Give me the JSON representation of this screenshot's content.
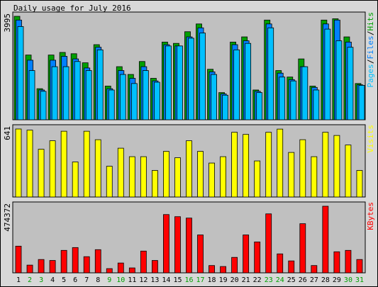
{
  "title": "Daily usage for July 2016",
  "colors": {
    "hits": "#00a000",
    "files": "#0080ff",
    "pages": "#00c0ff",
    "visits": "#ffff00",
    "kbytes": "#ff0000",
    "weekday_label": "#000000",
    "weekend_label": "#00a000"
  },
  "chart_data": [
    {
      "type": "bar",
      "title": "Daily usage for July 2016",
      "ylabel_max": "3995",
      "ylim": [
        0,
        3995
      ],
      "legend": [
        {
          "name": "Pages",
          "color": "#00c0ff"
        },
        {
          "name": "Files",
          "color": "#0080ff"
        },
        {
          "name": "Hits",
          "color": "#00a000"
        }
      ],
      "categories": [
        "1",
        "2",
        "3",
        "4",
        "5",
        "6",
        "7",
        "8",
        "9",
        "10",
        "11",
        "12",
        "13",
        "14",
        "15",
        "16",
        "17",
        "18",
        "19",
        "20",
        "21",
        "22",
        "23",
        "24",
        "25",
        "26",
        "27",
        "28",
        "29",
        "30",
        "31"
      ],
      "weekend_days": [
        "2",
        "3",
        "9",
        "10",
        "16",
        "17",
        "23",
        "24",
        "30",
        "31"
      ],
      "series": [
        {
          "name": "Hits",
          "values": [
            3995,
            2500,
            1200,
            2500,
            2600,
            2550,
            2200,
            2900,
            1300,
            2050,
            1750,
            2250,
            1600,
            3000,
            2950,
            3400,
            3700,
            1950,
            1050,
            3000,
            3200,
            1150,
            3850,
            1900,
            1650,
            2350,
            1300,
            3850,
            3900,
            3200,
            1400
          ]
        },
        {
          "name": "Files",
          "values": [
            3850,
            2300,
            1150,
            2300,
            2450,
            2350,
            2000,
            2800,
            1200,
            1900,
            1600,
            2050,
            1500,
            2900,
            2850,
            3200,
            3550,
            1850,
            1000,
            2900,
            3050,
            1100,
            3700,
            1800,
            1550,
            2050,
            1250,
            3700,
            3850,
            3000,
            1350
          ]
        },
        {
          "name": "Pages",
          "values": [
            3600,
            1900,
            1100,
            2050,
            2050,
            2250,
            1900,
            2700,
            1150,
            1750,
            1400,
            1900,
            1450,
            2850,
            2850,
            3150,
            3350,
            1750,
            950,
            2700,
            2950,
            1050,
            3550,
            1650,
            1500,
            2050,
            1150,
            3500,
            3050,
            2800,
            1330
          ]
        }
      ]
    },
    {
      "type": "bar",
      "ylabel_max": "641",
      "ylim": [
        0,
        641
      ],
      "legend": [
        {
          "name": "Visits",
          "color": "#ffff00"
        }
      ],
      "categories": [
        "1",
        "2",
        "3",
        "4",
        "5",
        "6",
        "7",
        "8",
        "9",
        "10",
        "11",
        "12",
        "13",
        "14",
        "15",
        "16",
        "17",
        "18",
        "19",
        "20",
        "21",
        "22",
        "23",
        "24",
        "25",
        "26",
        "27",
        "28",
        "29",
        "30",
        "31"
      ],
      "series": [
        {
          "name": "Visits",
          "values": [
            641,
            630,
            450,
            530,
            620,
            330,
            620,
            540,
            290,
            460,
            380,
            380,
            250,
            430,
            370,
            530,
            430,
            320,
            380,
            610,
            590,
            340,
            610,
            640,
            420,
            540,
            380,
            610,
            580,
            490,
            250
          ]
        }
      ]
    },
    {
      "type": "bar",
      "ylabel_max": "474372",
      "ylim": [
        0,
        474372
      ],
      "legend": [
        {
          "name": "KBytes",
          "color": "#ff0000"
        }
      ],
      "categories": [
        "1",
        "2",
        "3",
        "4",
        "5",
        "6",
        "7",
        "8",
        "9",
        "10",
        "11",
        "12",
        "13",
        "14",
        "15",
        "16",
        "17",
        "18",
        "19",
        "20",
        "21",
        "22",
        "23",
        "24",
        "25",
        "26",
        "27",
        "28",
        "29",
        "30",
        "31"
      ],
      "series": [
        {
          "name": "KBytes",
          "values": [
            190000,
            55000,
            95000,
            88000,
            160000,
            180000,
            115000,
            165000,
            30000,
            70000,
            35000,
            155000,
            88000,
            415000,
            400000,
            390000,
            270000,
            52000,
            45000,
            110000,
            270000,
            220000,
            420000,
            135000,
            85000,
            350000,
            52000,
            474372,
            150000,
            160000,
            95000
          ]
        }
      ]
    }
  ]
}
